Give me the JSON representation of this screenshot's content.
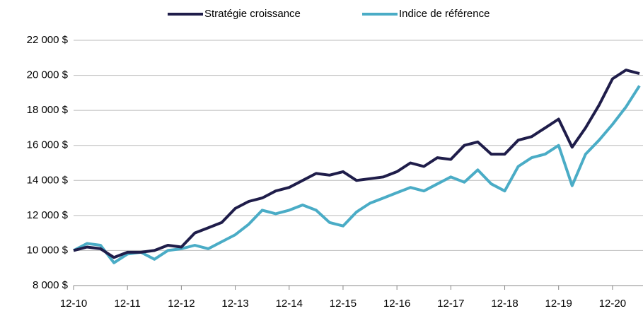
{
  "chart_data": {
    "type": "line",
    "categories": [
      "12-10",
      null,
      null,
      null,
      "12-11",
      null,
      null,
      null,
      "12-12",
      null,
      null,
      null,
      "12-13",
      null,
      null,
      null,
      "12-14",
      null,
      null,
      null,
      "12-15",
      null,
      null,
      null,
      "12-16",
      null,
      null,
      null,
      "12-17",
      null,
      null,
      null,
      "12-18",
      null,
      null,
      null,
      "12-19",
      null,
      null,
      null,
      "12-20",
      null,
      null
    ],
    "series": [
      {
        "name": "Stratégie croissance",
        "color": "#1f1d4a",
        "values": [
          10000,
          10200,
          10100,
          9600,
          9900,
          9900,
          10000,
          10300,
          10200,
          11000,
          11300,
          11600,
          12400,
          12800,
          13000,
          13400,
          13600,
          14000,
          14400,
          14300,
          14500,
          14000,
          14100,
          14200,
          14500,
          15000,
          14800,
          15300,
          15200,
          16000,
          16200,
          15500,
          15500,
          16300,
          16500,
          17000,
          17500,
          15900,
          17000,
          18300,
          19800,
          20300,
          20100
        ]
      },
      {
        "name": "Indice de référence",
        "color": "#4aacc6",
        "values": [
          10000,
          10400,
          10300,
          9300,
          9800,
          9900,
          9500,
          10000,
          10100,
          10300,
          10100,
          10500,
          10900,
          11500,
          12300,
          12100,
          12300,
          12600,
          12300,
          11600,
          11400,
          12200,
          12700,
          13000,
          13300,
          13600,
          13400,
          13800,
          14200,
          13900,
          14600,
          13800,
          13400,
          14800,
          15300,
          15500,
          16000,
          13700,
          15500,
          16300,
          17200,
          18200,
          19400
        ]
      }
    ],
    "ylim": [
      8000,
      22000
    ],
    "yticks": [
      {
        "value": 8000,
        "label": "8 000 $"
      },
      {
        "value": 10000,
        "label": "10 000 $"
      },
      {
        "value": 12000,
        "label": "12 000 $"
      },
      {
        "value": 14000,
        "label": "14 000 $"
      },
      {
        "value": 16000,
        "label": "16 000 $"
      },
      {
        "value": 18000,
        "label": "18 000 $"
      },
      {
        "value": 20000,
        "label": "20 000 $"
      },
      {
        "value": 22000,
        "label": "22 000 $"
      }
    ],
    "grid": true,
    "legend": "top"
  }
}
